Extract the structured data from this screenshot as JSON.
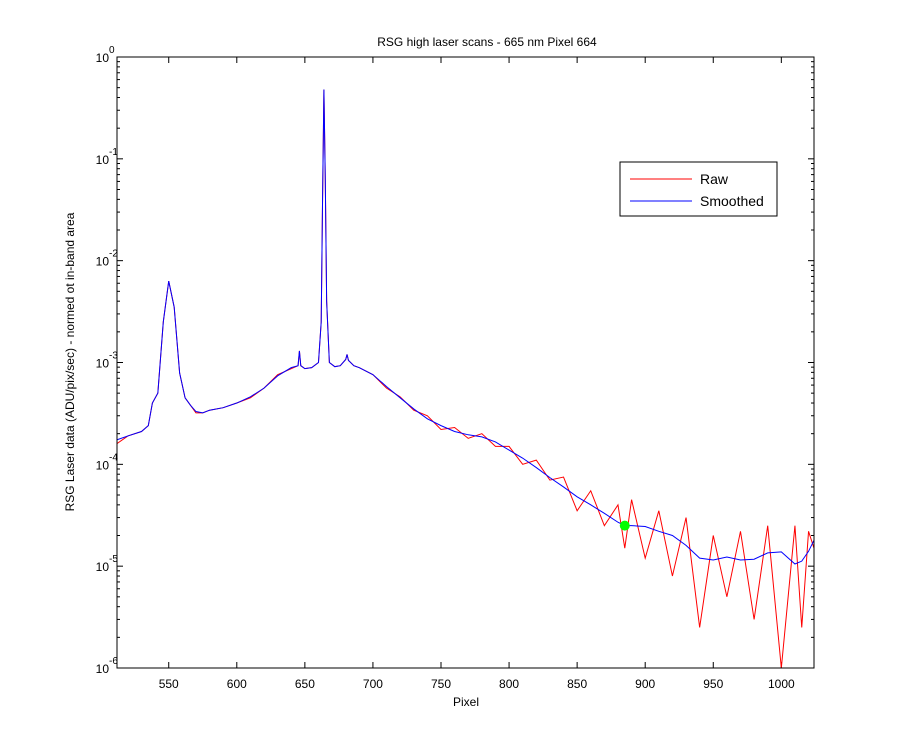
{
  "chart_data": {
    "type": "line",
    "title": "RSG high laser scans  - 665 nm    Pixel 664",
    "xlabel": "Pixel",
    "ylabel": "RSG Laser data (ADU/pix/sec) - normed ot in-band area",
    "yscale": "log",
    "xlim": [
      512,
      1024
    ],
    "ylim": [
      1e-06,
      1
    ],
    "xticks": [
      550,
      600,
      650,
      700,
      750,
      800,
      850,
      900,
      950,
      1000
    ],
    "yticks": [
      {
        "value": 1e-06,
        "label": "10",
        "exponent": "-6"
      },
      {
        "value": 1e-05,
        "label": "10",
        "exponent": "-5"
      },
      {
        "value": 0.0001,
        "label": "10",
        "exponent": "-4"
      },
      {
        "value": 0.001,
        "label": "10",
        "exponent": "-3"
      },
      {
        "value": 0.01,
        "label": "10",
        "exponent": "-2"
      },
      {
        "value": 0.1,
        "label": "10",
        "exponent": "-1"
      },
      {
        "value": 1,
        "label": "10",
        "exponent": "0"
      }
    ],
    "legend": "upper right",
    "x": [
      512,
      520,
      530,
      535,
      538,
      542,
      546,
      550,
      554,
      558,
      562,
      566,
      570,
      575,
      580,
      590,
      600,
      610,
      620,
      630,
      640,
      645,
      646,
      647,
      650,
      655,
      660,
      662,
      663,
      664,
      665,
      666,
      668,
      672,
      676,
      680,
      681,
      682,
      686,
      690,
      700,
      710,
      720,
      730,
      740,
      750,
      760,
      770,
      780,
      790,
      800,
      810,
      820,
      830,
      840,
      850,
      860,
      870,
      880,
      885,
      890,
      900,
      910,
      920,
      930,
      940,
      950,
      960,
      970,
      980,
      990,
      1000,
      1010,
      1015,
      1020,
      1024
    ],
    "series": [
      {
        "name": "Raw",
        "color": "#ff0000",
        "values": [
          0.00016,
          0.00019,
          0.00021,
          0.00024,
          0.0004,
          0.0005,
          0.0025,
          0.0063,
          0.0035,
          0.00079,
          0.00045,
          0.00038,
          0.00032,
          0.00032,
          0.00034,
          0.00036,
          0.0004,
          0.00045,
          0.00056,
          0.00076,
          0.00087,
          0.00093,
          0.0013,
          0.00093,
          0.00087,
          0.00089,
          0.001,
          0.0025,
          0.04,
          0.48,
          0.063,
          0.004,
          0.001,
          0.00091,
          0.00093,
          0.00107,
          0.0012,
          0.00105,
          0.00093,
          0.00089,
          0.00076,
          0.00056,
          0.00046,
          0.00034,
          0.0003,
          0.00022,
          0.00023,
          0.00018,
          0.0002,
          0.00015,
          0.00015,
          0.0001,
          0.00011,
          7e-05,
          7.5e-05,
          3.5e-05,
          5.5e-05,
          2.5e-05,
          4e-05,
          1.5e-05,
          4.5e-05,
          1.2e-05,
          3.5e-05,
          8e-06,
          3e-05,
          2.5e-06,
          2e-05,
          5e-06,
          2.2e-05,
          3e-06,
          2.5e-05,
          1e-06,
          2.5e-05,
          2.5e-06,
          2.2e-05,
          1.5e-05
        ]
      },
      {
        "name": "Smoothed",
        "color": "#0000ff",
        "values": [
          0.000174,
          0.00019,
          0.00021,
          0.00024,
          0.0004,
          0.0005,
          0.0025,
          0.0063,
          0.0035,
          0.00079,
          0.00045,
          0.00038,
          0.00033,
          0.00032,
          0.00034,
          0.00036,
          0.0004,
          0.00046,
          0.00056,
          0.00074,
          0.00089,
          0.00093,
          0.0013,
          0.00093,
          0.00087,
          0.00089,
          0.001,
          0.0025,
          0.04,
          0.48,
          0.063,
          0.004,
          0.001,
          0.00091,
          0.00093,
          0.00107,
          0.0012,
          0.00105,
          0.00093,
          0.00089,
          0.00076,
          0.00058,
          0.00045,
          0.00035,
          0.00028,
          0.00024,
          0.00021,
          0.000195,
          0.000186,
          0.000166,
          0.000138,
          0.000115,
          9.3e-05,
          7.4e-05,
          6e-05,
          4.8e-05,
          4e-05,
          3.3e-05,
          2.7e-05,
          2.5e-05,
          2.5e-05,
          2.45e-05,
          2.2e-05,
          2e-05,
          1.6e-05,
          1.2e-05,
          1.15e-05,
          1.23e-05,
          1.15e-05,
          1.17e-05,
          1.35e-05,
          1.38e-05,
          1.05e-05,
          1.12e-05,
          1.4e-05,
          1.8e-05
        ]
      }
    ],
    "marker": {
      "x": 885,
      "y": 2.5e-05,
      "color": "#00ff00"
    }
  }
}
